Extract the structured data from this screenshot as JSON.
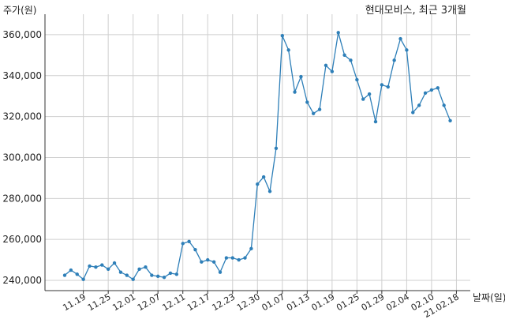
{
  "chart_data": {
    "type": "line",
    "title": "현대모비스, 최근 3개월",
    "ylabel": "주가(원)",
    "xlabel": "날짜(일)",
    "ylim": [
      235000,
      370000
    ],
    "grid": true,
    "line_color": "#2e7fb8",
    "x_tick_labels": [
      "11.19",
      "11.25",
      "12.01",
      "12.07",
      "12.11",
      "12.17",
      "12.23",
      "12.30",
      "01.07",
      "01.13",
      "01.19",
      "01.25",
      "01.29",
      "02.04",
      "02.10",
      "21.02.18"
    ],
    "x_tick_indices": [
      3,
      7,
      11,
      15,
      19,
      23,
      27,
      31,
      35,
      39,
      43,
      47,
      51,
      55,
      59,
      63
    ],
    "y_ticks": [
      240000,
      260000,
      280000,
      300000,
      320000,
      340000,
      360000
    ],
    "y_tick_labels": [
      "240,000",
      "260,000",
      "280,000",
      "300,000",
      "320,000",
      "340,000",
      "360,000"
    ],
    "values": [
      242500,
      245000,
      243000,
      240500,
      247000,
      246500,
      247500,
      245500,
      248500,
      244000,
      242500,
      240500,
      245500,
      246500,
      242500,
      242000,
      241500,
      243500,
      243000,
      258000,
      259000,
      255000,
      249000,
      250000,
      249000,
      244000,
      251000,
      251000,
      250000,
      251000,
      255500,
      287000,
      290500,
      283500,
      304500,
      359500,
      352500,
      332000,
      339500,
      327000,
      321500,
      323500,
      345000,
      342000,
      361000,
      350000,
      347500,
      338000,
      328500,
      331000,
      317500,
      335500,
      334500,
      347500,
      358000,
      352500,
      322000,
      325500,
      331500,
      333000,
      334000,
      325500,
      318000
    ]
  }
}
